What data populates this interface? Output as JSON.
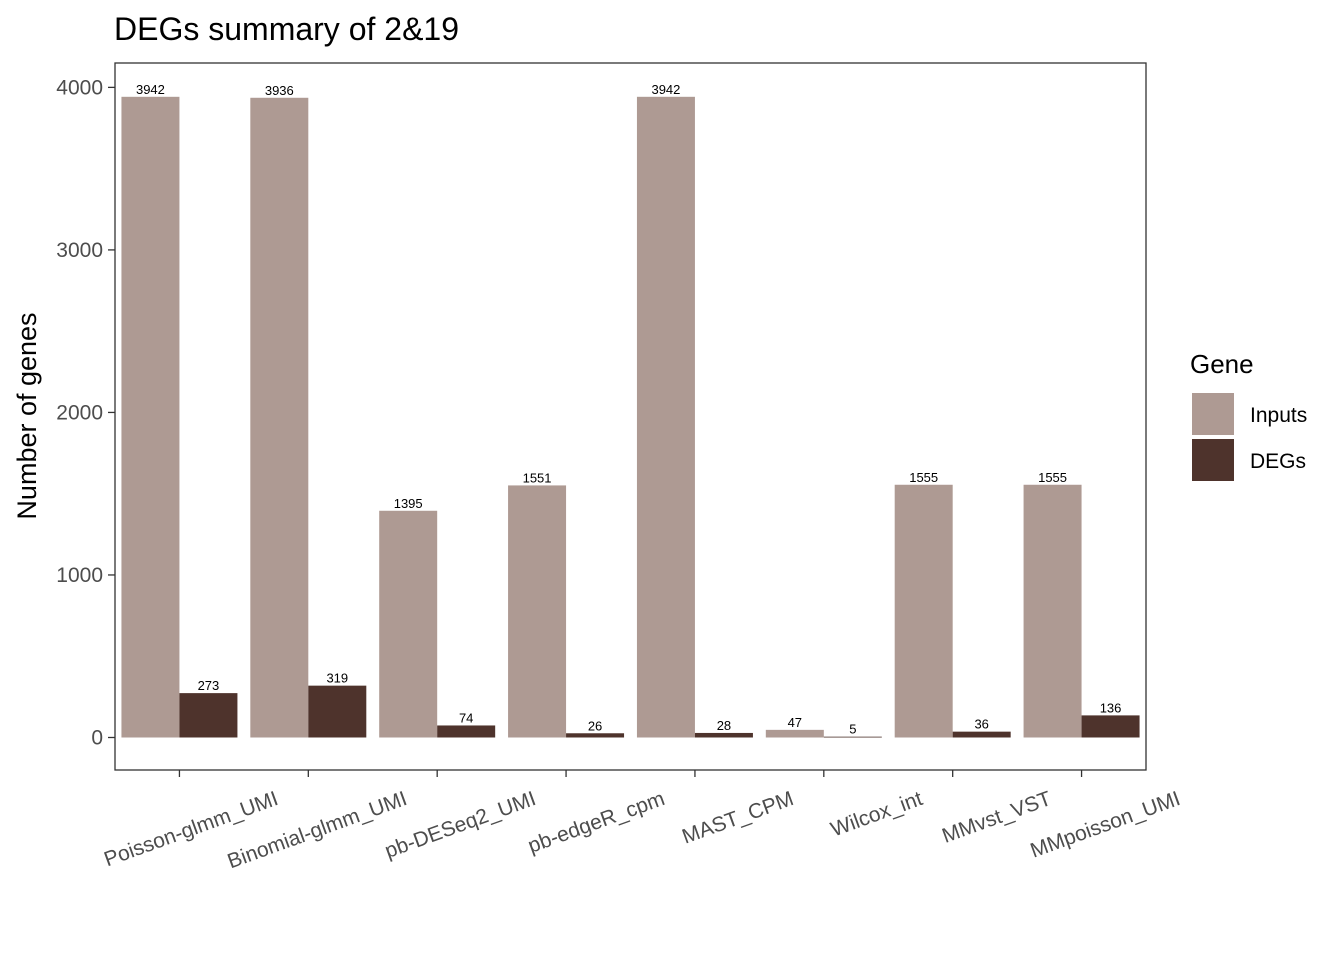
{
  "chart_data": {
    "type": "bar",
    "title": "DEGs summary of  2&19",
    "xlabel": "",
    "ylabel": "Number of genes",
    "categories": [
      "Poisson-glmm_UMI",
      "Binomial-glmm_UMI",
      "pb-DESeq2_UMI",
      "pb-edgeR_cpm",
      "MAST_CPM",
      "Wilcox_int",
      "MMvst_VST",
      "MMpoisson_UMI"
    ],
    "series": [
      {
        "name": "Inputs",
        "color": "#ae9a93",
        "values": [
          3942,
          3936,
          1395,
          1551,
          3942,
          47,
          1555,
          1555
        ]
      },
      {
        "name": "DEGs",
        "color": "#4e332c",
        "values": [
          273,
          319,
          74,
          26,
          28,
          5,
          36,
          136
        ]
      }
    ],
    "ylim": [
      -200,
      4150
    ],
    "yticks": [
      0,
      1000,
      2000,
      3000,
      4000
    ],
    "grid": false,
    "legend": {
      "title": "Gene",
      "position": "right"
    }
  }
}
